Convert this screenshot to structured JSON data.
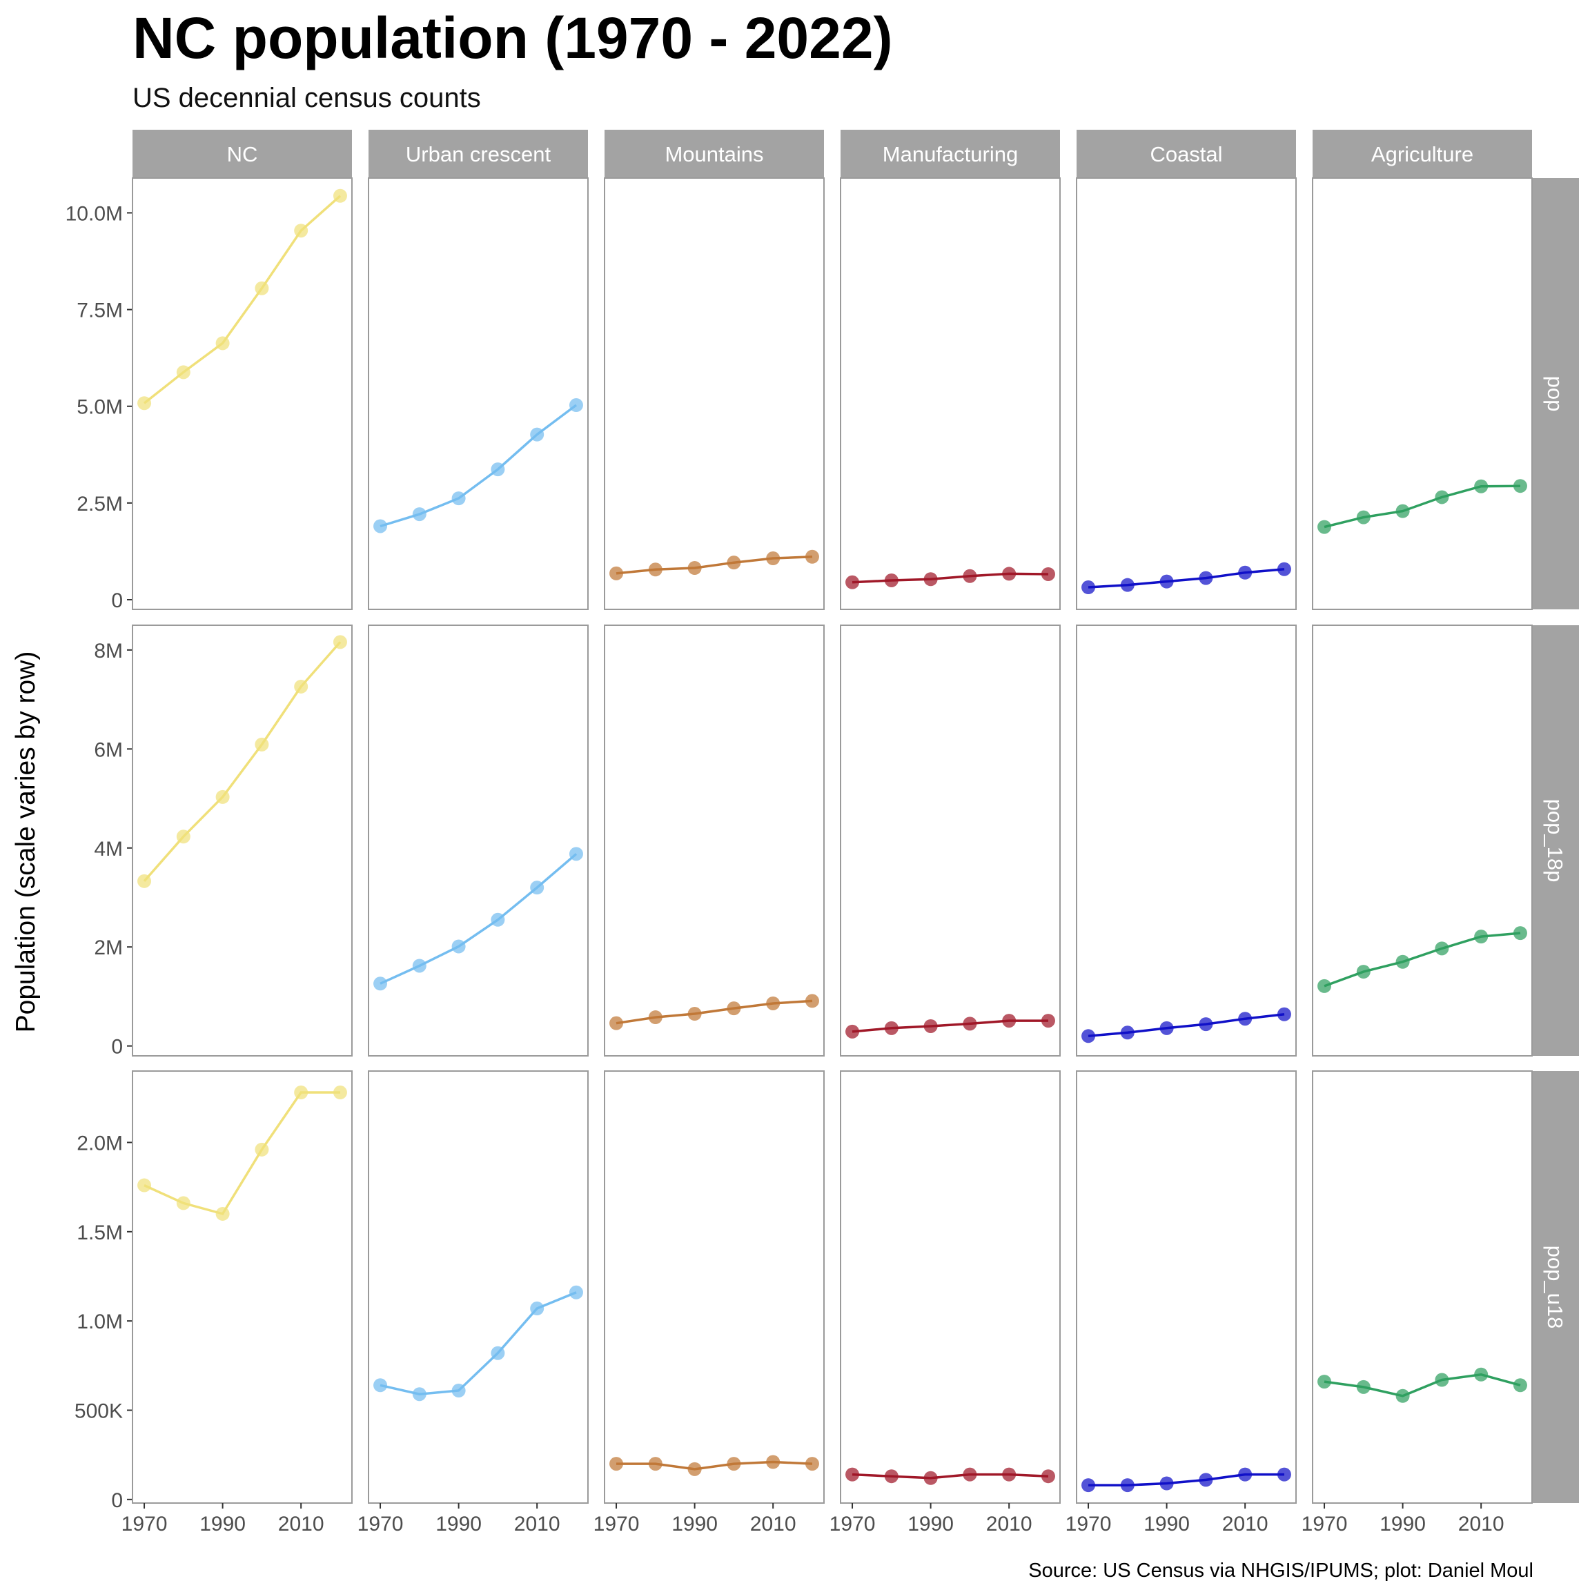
{
  "title": "NC population (1970 - 2022)",
  "subtitle": "US decennial census counts",
  "caption": "Source: US Census via NHGIS/IPUMS; plot: Daniel Moul",
  "chart_data": {
    "type": "line",
    "facet_columns": [
      "NC",
      "Urban crescent",
      "Mountains",
      "Manufacturing",
      "Coastal",
      "Agriculture"
    ],
    "facet_rows": [
      "pop",
      "pop_18p",
      "pop_u18"
    ],
    "colors": {
      "NC": "#f0e07a",
      "Urban crescent": "#74bdf0",
      "Mountains": "#c07838",
      "Manufacturing": "#a01828",
      "Coastal": "#1010c8",
      "Agriculture": "#2fa060"
    },
    "x": [
      1970,
      1980,
      1990,
      2000,
      2010,
      2020
    ],
    "x_ticks": [
      1970,
      1990,
      2010
    ],
    "xlim": [
      1967,
      2023
    ],
    "ylabel": "Population (scale varies by row)",
    "rows": [
      {
        "name": "pop",
        "ylim": [
          -250000,
          10900000
        ],
        "y_ticks": [
          0,
          2500000,
          5000000,
          7500000,
          10000000
        ],
        "y_tick_labels": [
          "0",
          "2.5M",
          "5.0M",
          "7.5M",
          "10.0M"
        ],
        "series": [
          {
            "region": "NC",
            "values": [
              5080000,
              5880000,
              6630000,
              8050000,
              9540000,
              10440000
            ]
          },
          {
            "region": "Urban crescent",
            "values": [
              1900000,
              2210000,
              2620000,
              3370000,
              4270000,
              5030000
            ]
          },
          {
            "region": "Mountains",
            "values": [
              680000,
              780000,
              820000,
              960000,
              1070000,
              1110000
            ]
          },
          {
            "region": "Manufacturing",
            "values": [
              450000,
              500000,
              530000,
              610000,
              670000,
              660000
            ]
          },
          {
            "region": "Coastal",
            "values": [
              320000,
              380000,
              470000,
              560000,
              700000,
              790000
            ]
          },
          {
            "region": "Agriculture",
            "values": [
              1880000,
              2130000,
              2290000,
              2650000,
              2930000,
              2940000
            ]
          }
        ]
      },
      {
        "name": "pop_18p",
        "ylim": [
          -200000,
          8500000
        ],
        "y_ticks": [
          0,
          2000000,
          4000000,
          6000000,
          8000000
        ],
        "y_tick_labels": [
          "0",
          "2M",
          "4M",
          "6M",
          "8M"
        ],
        "series": [
          {
            "region": "NC",
            "values": [
              3330000,
              4230000,
              5030000,
              6090000,
              7260000,
              8160000
            ]
          },
          {
            "region": "Urban crescent",
            "values": [
              1260000,
              1620000,
              2010000,
              2550000,
              3200000,
              3880000
            ]
          },
          {
            "region": "Mountains",
            "values": [
              460000,
              580000,
              650000,
              760000,
              860000,
              910000
            ]
          },
          {
            "region": "Manufacturing",
            "values": [
              290000,
              360000,
              400000,
              450000,
              510000,
              510000
            ]
          },
          {
            "region": "Coastal",
            "values": [
              200000,
              270000,
              360000,
              440000,
              550000,
              640000
            ]
          },
          {
            "region": "Agriculture",
            "values": [
              1210000,
              1500000,
              1700000,
              1970000,
              2210000,
              2280000
            ]
          }
        ]
      },
      {
        "name": "pop_u18",
        "ylim": [
          -20000,
          2400000
        ],
        "y_ticks": [
          0,
          500000,
          1000000,
          1500000,
          2000000
        ],
        "y_tick_labels": [
          "0",
          "500K",
          "1.0M",
          "1.5M",
          "2.0M"
        ],
        "series": [
          {
            "region": "NC",
            "values": [
              1760000,
              1660000,
              1600000,
              1960000,
              2280000,
              2280000
            ]
          },
          {
            "region": "Urban crescent",
            "values": [
              640000,
              590000,
              610000,
              820000,
              1070000,
              1160000
            ]
          },
          {
            "region": "Mountains",
            "values": [
              200000,
              200000,
              170000,
              200000,
              210000,
              200000
            ]
          },
          {
            "region": "Manufacturing",
            "values": [
              140000,
              130000,
              120000,
              140000,
              140000,
              130000
            ]
          },
          {
            "region": "Coastal",
            "values": [
              80000,
              80000,
              90000,
              110000,
              140000,
              140000
            ]
          },
          {
            "region": "Agriculture",
            "values": [
              660000,
              630000,
              580000,
              670000,
              700000,
              640000
            ]
          }
        ]
      }
    ]
  }
}
